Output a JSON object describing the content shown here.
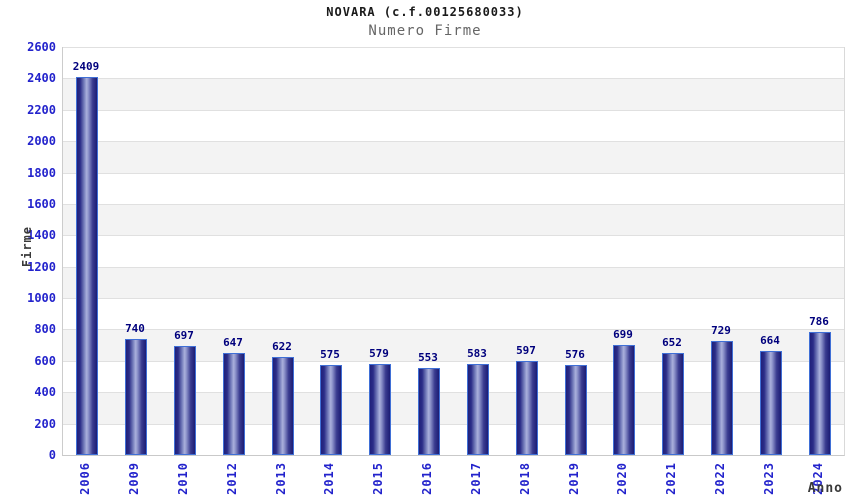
{
  "header": {
    "title": "NOVARA (c.f.00125680033)",
    "subtitle": "Numero Firme"
  },
  "chart_data": {
    "type": "bar",
    "title": "NOVARA (c.f.00125680033)",
    "subtitle": "Numero Firme",
    "xlabel": "Anno",
    "ylabel": "Firme",
    "categories": [
      "2006",
      "2009",
      "2010",
      "2012",
      "2013",
      "2014",
      "2015",
      "2016",
      "2017",
      "2018",
      "2019",
      "2020",
      "2021",
      "2022",
      "2023",
      "2024"
    ],
    "values": [
      2409,
      740,
      697,
      647,
      622,
      575,
      579,
      553,
      583,
      597,
      576,
      699,
      652,
      729,
      664,
      786
    ],
    "ylim": [
      0,
      2600
    ],
    "ytick_step": 200,
    "ytick_labels": [
      "0",
      "200",
      "400",
      "600",
      "800",
      "1000",
      "1200",
      "1400",
      "1600",
      "1800",
      "2000",
      "2200",
      "2400",
      "2600"
    ],
    "grid": "horizontal",
    "background_bands": "alternating",
    "legend": "none",
    "colors": {
      "bar_dark": "#20207a",
      "bar_light": "#aab0dc",
      "bar_border": "#3f6fd6",
      "tick_label": "#2323cc",
      "data_label": "#00007d",
      "axis_title": "#3a3a3a",
      "title": "#1a1a1a",
      "subtitle": "#666666",
      "band_gray": "#f3f3f3",
      "band_white": "#ffffff",
      "gridline": "#e0e0e0"
    }
  }
}
